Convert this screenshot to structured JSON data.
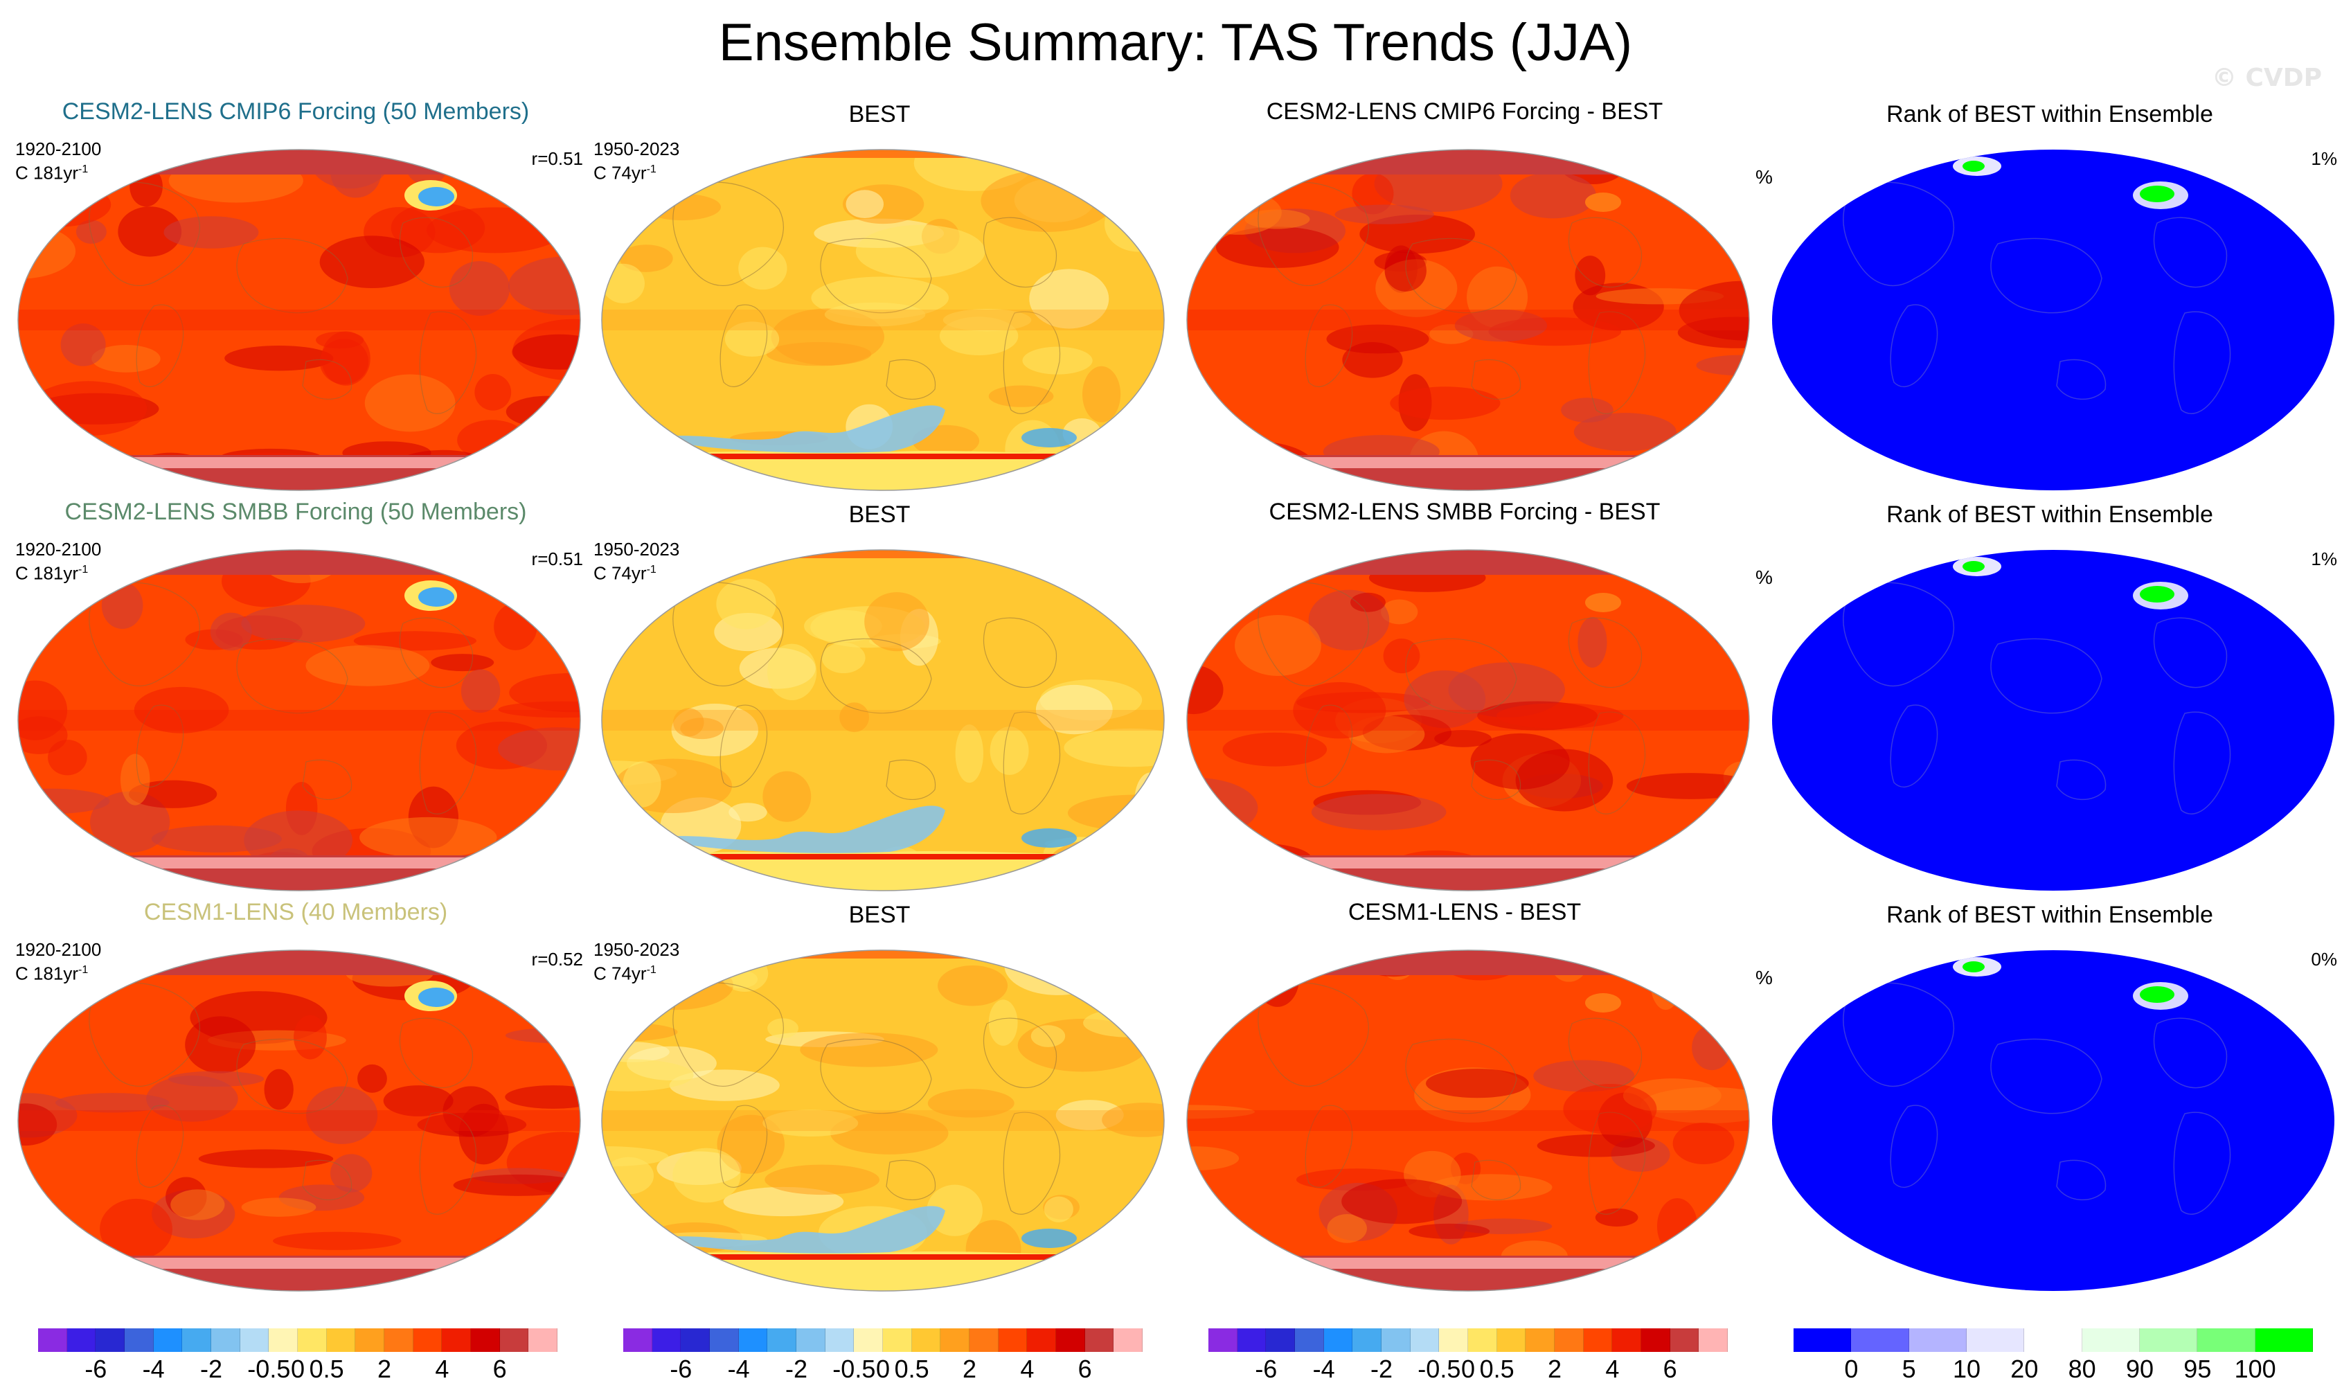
{
  "title": "Ensemble Summary: TAS Trends (JJA)",
  "watermark": "© CVDP",
  "rows": [
    {
      "model": {
        "title": "CESM2-LENS CMIP6 Forcing (50 Members)",
        "title_color": "#1f6f8b",
        "period": "1920-2100",
        "units": "C 181yr",
        "corr": "r=0.51"
      },
      "obs": {
        "title": "BEST",
        "period": "1950-2023",
        "units": "C 74yr"
      },
      "diff": {
        "title": "CESM2-LENS CMIP6 Forcing - BEST"
      },
      "rank": {
        "title": "Rank of BEST within Ensemble",
        "pct_label": "%",
        "value": "1%"
      }
    },
    {
      "model": {
        "title": "CESM2-LENS SMBB Forcing (50 Members)",
        "title_color": "#5b8a6a",
        "period": "1920-2100",
        "units": "C 181yr",
        "corr": "r=0.51"
      },
      "obs": {
        "title": "BEST",
        "period": "1950-2023",
        "units": "C 74yr"
      },
      "diff": {
        "title": "CESM2-LENS SMBB Forcing - BEST"
      },
      "rank": {
        "title": "Rank of BEST within Ensemble",
        "pct_label": "%",
        "value": "1%"
      }
    },
    {
      "model": {
        "title": "CESM1-LENS (40 Members)",
        "title_color": "#c9c27a",
        "period": "1920-2100",
        "units": "C 181yr",
        "corr": "r=0.52"
      },
      "obs": {
        "title": "BEST",
        "period": "1950-2023",
        "units": "C 74yr"
      },
      "diff": {
        "title": "CESM1-LENS - BEST"
      },
      "rank": {
        "title": "Rank of BEST within Ensemble",
        "pct_label": "%",
        "value": "0%"
      }
    }
  ],
  "superscript": "-1",
  "colorbars": {
    "trend": {
      "colors": [
        "#8a2be2",
        "#3c1ee6",
        "#2828d2",
        "#3c64dc",
        "#1e90ff",
        "#46aaf0",
        "#82c3f0",
        "#b4dcf5",
        "#fff5b4",
        "#ffe664",
        "#ffc832",
        "#ffa01e",
        "#ff7814",
        "#ff4600",
        "#f01e00",
        "#d20000",
        "#c83c3c",
        "#ffb4b4"
      ],
      "labels": [
        "-6",
        "-4",
        "-2",
        "-0.5",
        "0",
        "0.5",
        "2",
        "4",
        "6"
      ],
      "label_boundaries": [
        2,
        4,
        6,
        8,
        9,
        10,
        12,
        14,
        16
      ]
    },
    "rank": {
      "colors": [
        "#0000ff",
        "#6464ff",
        "#b4b4ff",
        "#e6e6ff",
        "#ffffff",
        "#e6ffe6",
        "#b4ffb4",
        "#78ff78",
        "#00ff00"
      ],
      "labels": [
        "0",
        "5",
        "10",
        "20",
        "80",
        "90",
        "95",
        "100"
      ],
      "label_boundaries": [
        1,
        2,
        3,
        4,
        5,
        6,
        7,
        8
      ]
    }
  },
  "chart_data": {
    "type": "heatmap",
    "title": "Ensemble Summary: TAS Trends (JJA)",
    "panels": [
      {
        "row": 1,
        "col": 1,
        "title": "CESM2-LENS CMIP6 Forcing (50 Members)",
        "period": "1920-2100",
        "units": "C 181yr-1",
        "r": 0.51
      },
      {
        "row": 1,
        "col": 2,
        "title": "BEST",
        "period": "1950-2023",
        "units": "C 74yr-1"
      },
      {
        "row": 1,
        "col": 3,
        "title": "CESM2-LENS CMIP6 Forcing - BEST"
      },
      {
        "row": 1,
        "col": 4,
        "title": "Rank of BEST within Ensemble",
        "rank_pct": 1
      },
      {
        "row": 2,
        "col": 1,
        "title": "CESM2-LENS SMBB Forcing (50 Members)",
        "period": "1920-2100",
        "units": "C 181yr-1",
        "r": 0.51
      },
      {
        "row": 2,
        "col": 2,
        "title": "BEST",
        "period": "1950-2023",
        "units": "C 74yr-1"
      },
      {
        "row": 2,
        "col": 3,
        "title": "CESM2-LENS SMBB Forcing - BEST"
      },
      {
        "row": 2,
        "col": 4,
        "title": "Rank of BEST within Ensemble",
        "rank_pct": 1
      },
      {
        "row": 3,
        "col": 1,
        "title": "CESM1-LENS (40 Members)",
        "period": "1920-2100",
        "units": "C 181yr-1",
        "r": 0.52
      },
      {
        "row": 3,
        "col": 2,
        "title": "BEST",
        "period": "1950-2023",
        "units": "C 74yr-1"
      },
      {
        "row": 3,
        "col": 3,
        "title": "CESM1-LENS - BEST"
      },
      {
        "row": 3,
        "col": 4,
        "title": "Rank of BEST within Ensemble",
        "rank_pct": 0
      }
    ],
    "trend_levels": [
      -6,
      -4,
      -2,
      -0.5,
      0,
      0.5,
      2,
      4,
      6
    ],
    "rank_levels": [
      0,
      5,
      10,
      20,
      80,
      90,
      95,
      100
    ]
  }
}
